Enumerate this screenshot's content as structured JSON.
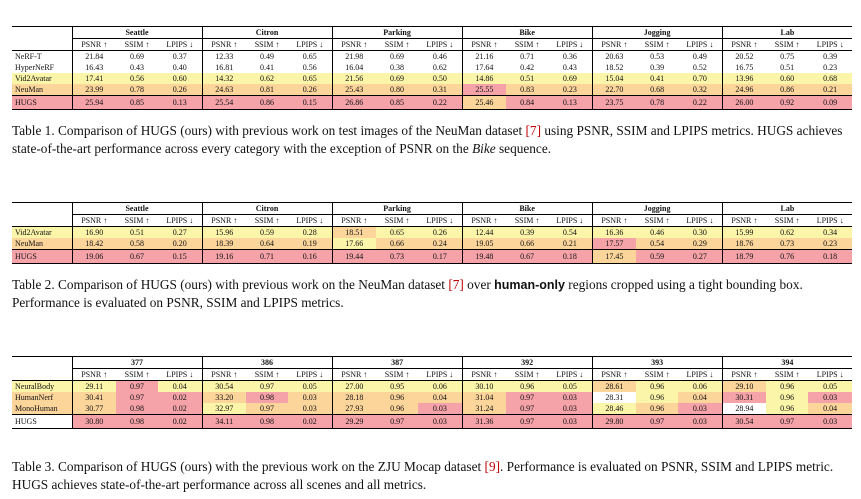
{
  "colors": {
    "red": "#f5a3a8",
    "orange": "#fcd59b",
    "yellow": "#fbf5a9"
  },
  "tables": [
    {
      "groups": [
        "Seattle",
        "Citron",
        "Parking",
        "Bike",
        "Jogging",
        "Lab"
      ],
      "metrics": [
        "PSNR ↑",
        "SSIM ↑",
        "LPIPS ↓"
      ],
      "rows": [
        [
          "NeRF-T",
          "21.84",
          "0.69",
          "0.37",
          "12.33",
          "0.49",
          "0.65",
          "21.98",
          "0.69",
          "0.46",
          "21.16",
          "0.71",
          "0.36",
          "20.63",
          "0.53",
          "0.49",
          "20.52",
          "0.75",
          "0.39"
        ],
        [
          "HyperNeRF",
          "16.43",
          "0.43",
          "0.40",
          "16.81",
          "0.41",
          "0.56",
          "16.04",
          "0.38",
          "0.62",
          "17.64",
          "0.42",
          "0.43",
          "18.52",
          "0.39",
          "0.52",
          "16.75",
          "0.51",
          "0.23"
        ],
        [
          "Vid2Avatar",
          "17.41",
          "0.56",
          "0.60",
          "14.32",
          "0.62",
          "0.65",
          "21.56",
          "0.69",
          "0.50",
          "14.86",
          "0.51",
          "0.69",
          "15.04",
          "0.41",
          "0.70",
          "13.96",
          "0.60",
          "0.68"
        ],
        [
          "NeuMan",
          "23.99",
          "0.78",
          "0.26",
          "24.63",
          "0.81",
          "0.26",
          "25.43",
          "0.80",
          "0.31",
          "25.55",
          "0.83",
          "0.23",
          "22.70",
          "0.68",
          "0.32",
          "24.96",
          "0.86",
          "0.21"
        ]
      ],
      "hugs": [
        "HUGS",
        "25.94",
        "0.85",
        "0.13",
        "25.54",
        "0.86",
        "0.15",
        "26.86",
        "0.85",
        "0.22",
        "25.46",
        "0.84",
        "0.13",
        "23.75",
        "0.78",
        "0.22",
        "26.00",
        "0.92",
        "0.09"
      ],
      "row_colors": [
        [
          "",
          "",
          "",
          "",
          "",
          "",
          "",
          "",
          "",
          "",
          "",
          "",
          "",
          "",
          "",
          "",
          "",
          "",
          ""
        ],
        [
          "",
          "",
          "",
          "",
          "",
          "",
          "",
          "",
          "",
          "",
          "",
          "",
          "",
          "",
          "",
          "",
          "",
          "",
          ""
        ],
        [
          "yellow",
          "yellow",
          "yellow",
          "yellow",
          "yellow",
          "yellow",
          "yellow",
          "yellow",
          "yellow",
          "yellow",
          "yellow",
          "yellow",
          "yellow",
          "yellow",
          "yellow",
          "yellow",
          "yellow",
          "yellow",
          "yellow"
        ],
        [
          "orange",
          "orange",
          "orange",
          "orange",
          "orange",
          "orange",
          "orange",
          "orange",
          "orange",
          "orange",
          "red",
          "orange",
          "orange",
          "orange",
          "orange",
          "orange",
          "orange",
          "orange",
          "orange"
        ]
      ],
      "hugs_colors": [
        "red",
        "red",
        "red",
        "red",
        "red",
        "red",
        "red",
        "red",
        "red",
        "red",
        "orange",
        "red",
        "red",
        "red",
        "red",
        "red",
        "red",
        "red",
        "red"
      ]
    },
    {
      "groups": [
        "Seattle",
        "Citron",
        "Parking",
        "Bike",
        "Jogging",
        "Lab"
      ],
      "metrics": [
        "PSNR ↑",
        "SSIM ↑",
        "LPIPS ↓"
      ],
      "rows": [
        [
          "Vid2Avatar",
          "16.90",
          "0.51",
          "0.27",
          "15.96",
          "0.59",
          "0.28",
          "18.51",
          "0.65",
          "0.26",
          "12.44",
          "0.39",
          "0.54",
          "16.36",
          "0.46",
          "0.30",
          "15.99",
          "0.62",
          "0.34"
        ],
        [
          "NeuMan",
          "18.42",
          "0.58",
          "0.20",
          "18.39",
          "0.64",
          "0.19",
          "17.66",
          "0.66",
          "0.24",
          "19.05",
          "0.66",
          "0.21",
          "17.57",
          "0.54",
          "0.29",
          "18.76",
          "0.73",
          "0.23"
        ]
      ],
      "hugs": [
        "HUGS",
        "19.06",
        "0.67",
        "0.15",
        "19.16",
        "0.71",
        "0.16",
        "19.44",
        "0.73",
        "0.17",
        "19.48",
        "0.67",
        "0.18",
        "17.45",
        "0.59",
        "0.27",
        "18.79",
        "0.76",
        "0.18"
      ],
      "row_colors": [
        [
          "yellow",
          "yellow",
          "yellow",
          "yellow",
          "yellow",
          "yellow",
          "yellow",
          "orange",
          "yellow",
          "yellow",
          "yellow",
          "yellow",
          "yellow",
          "yellow",
          "yellow",
          "yellow",
          "yellow",
          "yellow",
          "yellow"
        ],
        [
          "orange",
          "orange",
          "orange",
          "orange",
          "orange",
          "orange",
          "orange",
          "yellow",
          "orange",
          "orange",
          "orange",
          "orange",
          "orange",
          "red",
          "orange",
          "orange",
          "orange",
          "orange",
          "orange"
        ]
      ],
      "hugs_colors": [
        "red",
        "red",
        "red",
        "red",
        "red",
        "red",
        "red",
        "red",
        "red",
        "red",
        "red",
        "red",
        "red",
        "orange",
        "red",
        "red",
        "red",
        "red",
        "red"
      ]
    },
    {
      "groups": [
        "377",
        "386",
        "387",
        "392",
        "393",
        "394"
      ],
      "metrics": [
        "PSNR ↑",
        "SSIM ↑",
        "LPIPS ↓"
      ],
      "rows": [
        [
          "NeuralBody",
          "29.11",
          "0.97",
          "0.04",
          "30.54",
          "0.97",
          "0.05",
          "27.00",
          "0.95",
          "0.06",
          "30.10",
          "0.96",
          "0.05",
          "28.61",
          "0.96",
          "0.06",
          "29.10",
          "0.96",
          "0.05"
        ],
        [
          "HumanNerf",
          "30.41",
          "0.97",
          "0.02",
          "33.20",
          "0.98",
          "0.03",
          "28.18",
          "0.96",
          "0.04",
          "31.04",
          "0.97",
          "0.03",
          "28.31",
          "0.96",
          "0.04",
          "30.31",
          "0.96",
          "0.03"
        ],
        [
          "MonoHuman",
          "30.77",
          "0.98",
          "0.02",
          "32.97",
          "0.97",
          "0.03",
          "27.93",
          "0.96",
          "0.03",
          "31.24",
          "0.97",
          "0.03",
          "28.46",
          "0.96",
          "0.03",
          "28.94",
          "0.96",
          "0.04"
        ]
      ],
      "hugs": [
        "HUGS",
        "30.80",
        "0.98",
        "0.02",
        "34.11",
        "0.98",
        "0.02",
        "29.29",
        "0.97",
        "0.03",
        "31.36",
        "0.97",
        "0.03",
        "29.80",
        "0.97",
        "0.03",
        "30.54",
        "0.97",
        "0.03"
      ],
      "row_colors": [
        [
          "yellow",
          "yellow",
          "red",
          "yellow",
          "yellow",
          "yellow",
          "yellow",
          "yellow",
          "yellow",
          "yellow",
          "yellow",
          "yellow",
          "yellow",
          "orange",
          "yellow",
          "yellow",
          "orange",
          "yellow",
          "yellow"
        ],
        [
          "orange",
          "orange",
          "red",
          "red",
          "orange",
          "red",
          "orange",
          "orange",
          "orange",
          "orange",
          "orange",
          "red",
          "red",
          "",
          "yellow",
          "orange",
          "red",
          "yellow",
          "red"
        ],
        [
          "orange",
          "orange",
          "red",
          "red",
          "yellow",
          "orange",
          "orange",
          "orange",
          "orange",
          "red",
          "orange",
          "red",
          "red",
          "yellow",
          "orange",
          "red",
          "",
          "yellow",
          "orange"
        ]
      ],
      "hugs_colors": [
        "",
        "red",
        "red",
        "red",
        "red",
        "red",
        "red",
        "red",
        "red",
        "red",
        "red",
        "red",
        "red",
        "red",
        "red",
        "red",
        "red",
        "red",
        "red"
      ]
    }
  ],
  "captions": {
    "t1_a": "Table 1. Comparison of HUGS (ours) with previous work on test images of the NeuMan dataset ",
    "t1_ref": "[7]",
    "t1_b": " using PSNR, SSIM and LPIPS metrics. HUGS achieves state-of-the-art performance across every category with the exception of PSNR on the ",
    "t1_em": "Bike",
    "t1_c": " sequence.",
    "t2_a": "Table 2. Comparison of HUGS (ours) with previous work on the NeuMan dataset ",
    "t2_ref": "[7]",
    "t2_b": " over ",
    "t2_strong": "human-only",
    "t2_c": " regions cropped using a tight bounding box. Performance is evaluated on PSNR, SSIM and LPIPS metrics.",
    "t3_a": "Table 3. Comparison of HUGS (ours) with the previous work on the ZJU Mocap dataset ",
    "t3_ref": "[9]",
    "t3_b": ". Performance is evaluated on PSNR, SSIM and LPIPS metric. HUGS achieves state-of-the-art performance across all scenes and all metrics."
  }
}
